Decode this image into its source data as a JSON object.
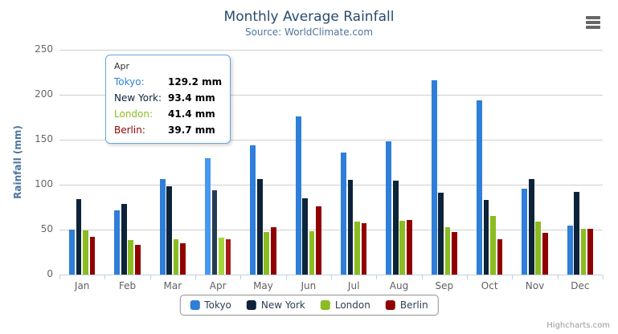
{
  "header": {
    "title": "Monthly Average Rainfall",
    "subtitle": "Source: WorldClimate.com"
  },
  "chart_data": {
    "type": "bar",
    "title": "Monthly Average Rainfall",
    "subtitle": "Source: WorldClimate.com",
    "categories": [
      "Jan",
      "Feb",
      "Mar",
      "Apr",
      "May",
      "Jun",
      "Jul",
      "Aug",
      "Sep",
      "Oct",
      "Nov",
      "Dec"
    ],
    "series": [
      {
        "name": "Tokyo",
        "color": "#2f7ed8",
        "hover_color": "#4897f1",
        "values": [
          49.9,
          71.5,
          106.4,
          129.2,
          144.0,
          176.0,
          135.6,
          148.5,
          216.4,
          194.1,
          95.6,
          54.4
        ]
      },
      {
        "name": "New York",
        "color": "#0d233a",
        "hover_color": "#263c53",
        "values": [
          83.6,
          78.8,
          98.5,
          93.4,
          106.0,
          84.5,
          105.0,
          104.3,
          91.2,
          83.5,
          106.6,
          92.3
        ]
      },
      {
        "name": "London",
        "color": "#8bbc21",
        "hover_color": "#a4d53a",
        "values": [
          48.9,
          38.8,
          39.3,
          41.4,
          47.0,
          48.3,
          59.0,
          59.6,
          52.4,
          65.2,
          59.3,
          51.2
        ]
      },
      {
        "name": "Berlin",
        "color": "#910000",
        "hover_color": "#aa1919",
        "values": [
          42.4,
          33.2,
          34.5,
          39.7,
          52.6,
          75.5,
          57.4,
          60.4,
          47.6,
          39.1,
          46.8,
          51.1
        ]
      }
    ],
    "xlabel": "",
    "ylabel": "Rainfall (mm)",
    "ylim": [
      0,
      250
    ],
    "yticks": [
      0,
      50,
      100,
      150,
      200,
      250
    ],
    "grid": true,
    "legend_position": "bottom",
    "hovered_category": "Apr",
    "hovered_index": 3
  },
  "tooltip": {
    "header": "Apr",
    "rows": [
      {
        "label": "Tokyo:",
        "value": "129.2 mm",
        "color": "#2f7ed8"
      },
      {
        "label": "New York:",
        "value": "93.4 mm",
        "color": "#0d233a"
      },
      {
        "label": "London:",
        "value": "41.4 mm",
        "color": "#8bbc21"
      },
      {
        "label": "Berlin:",
        "value": "39.7 mm",
        "color": "#910000"
      }
    ]
  },
  "export_menu": {
    "icon": "hamburger-menu-icon"
  },
  "credits": {
    "label": "Highcharts.com"
  }
}
